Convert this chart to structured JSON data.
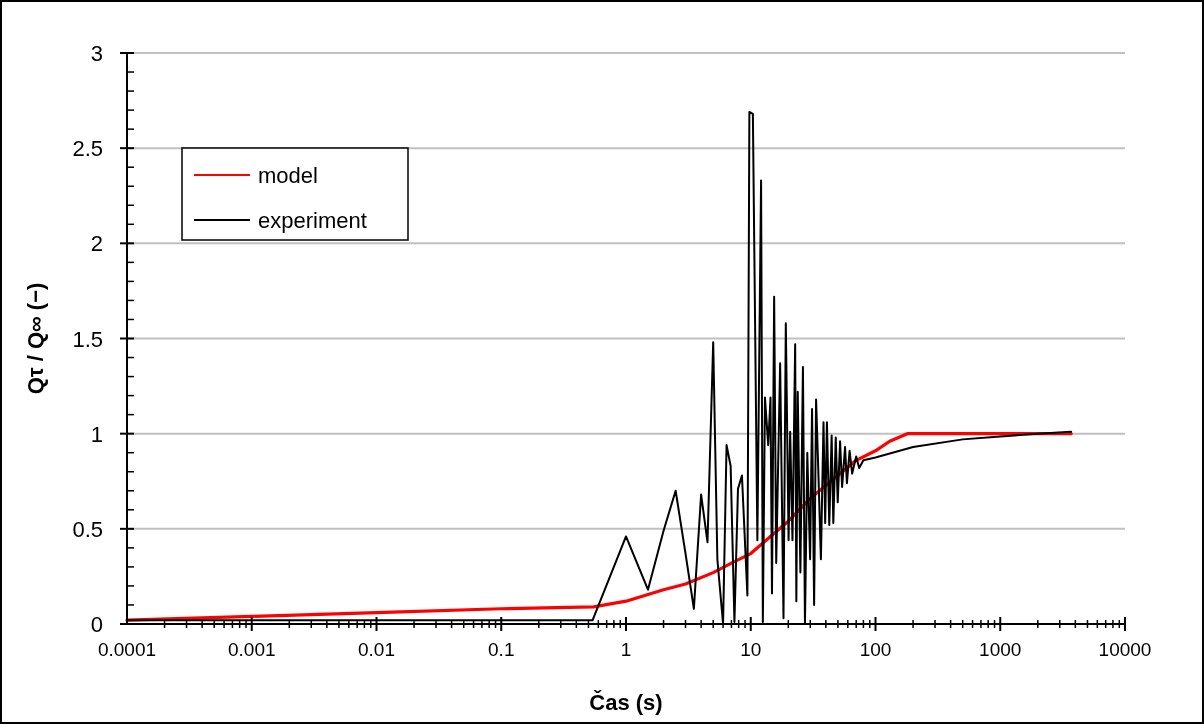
{
  "chart_data": {
    "type": "line",
    "xlabel": "Čas (s)",
    "ylabel": "Qτ / Q∞ (−)",
    "log": "x",
    "xlim": [
      0.0001,
      10000
    ],
    "xticks": [
      0.0001,
      0.001,
      0.01,
      0.1,
      1,
      10,
      100,
      1000,
      10000
    ],
    "ylim": [
      0,
      3
    ],
    "yticks": [
      0,
      0.5,
      1,
      1.5,
      2,
      2.5,
      3
    ],
    "grid": "y",
    "legend": "top left",
    "line_style": "solid",
    "series": [
      {
        "name": "model",
        "color": "#ff0000",
        "x": [
          0.0001,
          0.001,
          0.01,
          0.1,
          0.55,
          1,
          2,
          3,
          5,
          7,
          10,
          15,
          20,
          30,
          50,
          70,
          100,
          130,
          180,
          1000,
          3700
        ],
        "values": [
          0.02,
          0.04,
          0.06,
          0.08,
          0.09,
          0.12,
          0.18,
          0.21,
          0.27,
          0.32,
          0.37,
          0.47,
          0.54,
          0.66,
          0.78,
          0.86,
          0.91,
          0.96,
          1.0,
          1.0,
          1.0
        ]
      },
      {
        "name": "experiment",
        "color": "#000000",
        "x": [
          0.0001,
          0.54,
          1.0,
          1.5,
          2.0,
          2.5,
          3.0,
          3.5,
          4.0,
          4.5,
          5.0,
          5.4,
          6.0,
          6.4,
          6.9,
          7.4,
          7.9,
          8.5,
          9.4,
          9.75,
          10.4,
          11.3,
          12.1,
          12.5,
          13.0,
          13.8,
          14.4,
          14.8,
          15.4,
          16.0,
          17.2,
          18.3,
          19.1,
          20.1,
          20.7,
          21.6,
          22.7,
          23.2,
          23.8,
          25.0,
          26.2,
          27.2,
          28.4,
          29.9,
          31.0,
          32.2,
          33.4,
          34.6,
          36.5,
          38.3,
          39.5,
          40.8,
          42.6,
          44.5,
          45.9,
          48.0,
          49.8,
          52,
          54,
          57,
          59,
          62,
          65,
          70,
          74,
          80,
          100,
          200,
          500,
          1000,
          2000,
          3700
        ],
        "values": [
          0.02,
          0.02,
          0.46,
          0.18,
          0.49,
          0.7,
          0.37,
          0.08,
          0.68,
          0.43,
          1.48,
          0.34,
          0.0,
          0.94,
          0.83,
          0.01,
          0.71,
          0.78,
          0.15,
          2.69,
          2.68,
          0.44,
          2.33,
          0.01,
          1.19,
          0.94,
          1.19,
          0.16,
          1.72,
          0.32,
          1.37,
          0.03,
          1.58,
          0.44,
          1.01,
          0.44,
          1.47,
          0.12,
          1.22,
          0.27,
          1.35,
          0.0,
          0.9,
          0.34,
          1.13,
          0.1,
          1.18,
          0.86,
          0.34,
          1.06,
          0.53,
          1.06,
          0.52,
          0.99,
          0.53,
          0.98,
          0.64,
          0.96,
          0.72,
          0.93,
          0.74,
          0.91,
          0.79,
          0.88,
          0.82,
          0.86,
          0.875,
          0.93,
          0.97,
          0.985,
          1.0,
          1.01
        ]
      }
    ]
  }
}
